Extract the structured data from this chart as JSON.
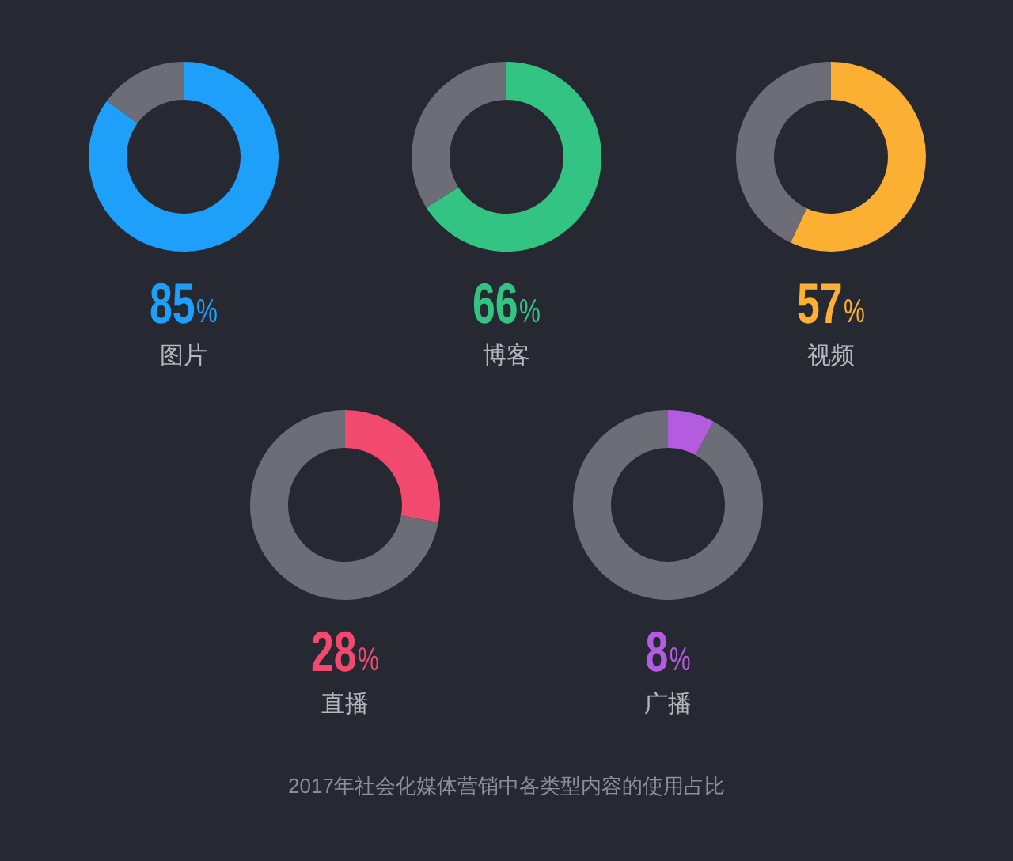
{
  "chart_data": [
    {
      "type": "donut",
      "title": "85%",
      "subtitle": "图片",
      "categories": [
        null,
        null
      ],
      "values": [
        85,
        15
      ],
      "colors": [
        "#1ea0fa",
        "#6c6d76"
      ]
    },
    {
      "type": "donut",
      "title": "66%",
      "subtitle": "博客",
      "categories": [
        null,
        null
      ],
      "values": [
        66,
        34
      ],
      "colors": [
        "#33c483",
        "#6c6d76"
      ]
    },
    {
      "type": "donut",
      "title": "57%",
      "subtitle": "视频",
      "categories": [
        null,
        null
      ],
      "values": [
        57,
        43
      ],
      "colors": [
        "#fbb034",
        "#6c6d76"
      ]
    },
    {
      "type": "donut",
      "title": "28%",
      "subtitle": "直播",
      "categories": [
        null,
        null
      ],
      "values": [
        28,
        72
      ],
      "colors": [
        "#f2496f",
        "#6c6d76"
      ]
    },
    {
      "type": "donut",
      "title": "8%",
      "subtitle": "广播",
      "categories": [
        null,
        null
      ],
      "values": [
        8,
        92
      ],
      "colors": [
        "#b45ce0",
        "#6c6d76"
      ],
      "annotations": [
        "2017年社会化媒体营销中各类型内容的使用占比"
      ]
    }
  ]
}
